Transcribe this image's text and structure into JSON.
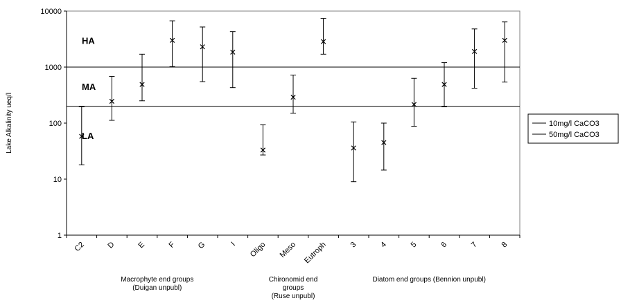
{
  "chart_data": {
    "type": "scatter",
    "ylabel": "Lake Alkalinity ueq/l",
    "yscale": "log",
    "ylim": [
      1,
      10000
    ],
    "yticks": [
      "1",
      "10",
      "100",
      "1000",
      "10000"
    ],
    "categories": [
      "C2",
      "D",
      "E",
      "F",
      "G",
      "I",
      "Oligo",
      "Meso",
      "Eutroph",
      "3",
      "4",
      "5",
      "6",
      "7",
      "8"
    ],
    "points": [
      {
        "category": "C2",
        "value": 58,
        "low": 18,
        "high": 195
      },
      {
        "category": "D",
        "value": 245,
        "low": 112,
        "high": 680
      },
      {
        "category": "E",
        "value": 490,
        "low": 250,
        "high": 1700
      },
      {
        "category": "F",
        "value": 3000,
        "low": 1020,
        "high": 6700
      },
      {
        "category": "G",
        "value": 2300,
        "low": 550,
        "high": 5200
      },
      {
        "category": "I",
        "value": 1850,
        "low": 430,
        "high": 4300
      },
      {
        "category": "Oligo",
        "value": 33,
        "low": 27,
        "high": 93
      },
      {
        "category": "Meso",
        "value": 290,
        "low": 150,
        "high": 720
      },
      {
        "category": "Eutroph",
        "value": 2850,
        "low": 1700,
        "high": 7400
      },
      {
        "category": "3",
        "value": 36,
        "low": 9,
        "high": 105
      },
      {
        "category": "4",
        "value": 45,
        "low": 14.5,
        "high": 100
      },
      {
        "category": "5",
        "value": 215,
        "low": 88,
        "high": 630
      },
      {
        "category": "6",
        "value": 490,
        "low": 195,
        "high": 1200
      },
      {
        "category": "7",
        "value": 1900,
        "low": 420,
        "high": 4800
      },
      {
        "category": "8",
        "value": 3000,
        "low": 540,
        "high": 6400
      }
    ],
    "reference_lines": [
      {
        "name": "10mg/l CaCO3",
        "value": 1000,
        "color": "#000000"
      },
      {
        "name": "50mg/l CaCO3",
        "value": 200,
        "color": "#000000"
      }
    ],
    "zone_labels": [
      {
        "text": "HA",
        "value": 3000
      },
      {
        "text": "MA",
        "value": 450
      },
      {
        "text": "LA",
        "value": 60
      }
    ],
    "group_labels": [
      {
        "lines": [
          "Macrophyte end groups",
          "(Duigan unpubl)"
        ],
        "from": "C2",
        "to": "I"
      },
      {
        "lines": [
          "Chironomid end",
          "groups",
          "(Ruse unpubl)"
        ],
        "from": "Oligo",
        "to": "Eutroph"
      },
      {
        "lines": [
          "Diatom end groups (Bennion unpubl)"
        ],
        "from": "3",
        "to": "8"
      }
    ],
    "grid": false,
    "legend_position": "right",
    "marker_color": "#000000"
  }
}
